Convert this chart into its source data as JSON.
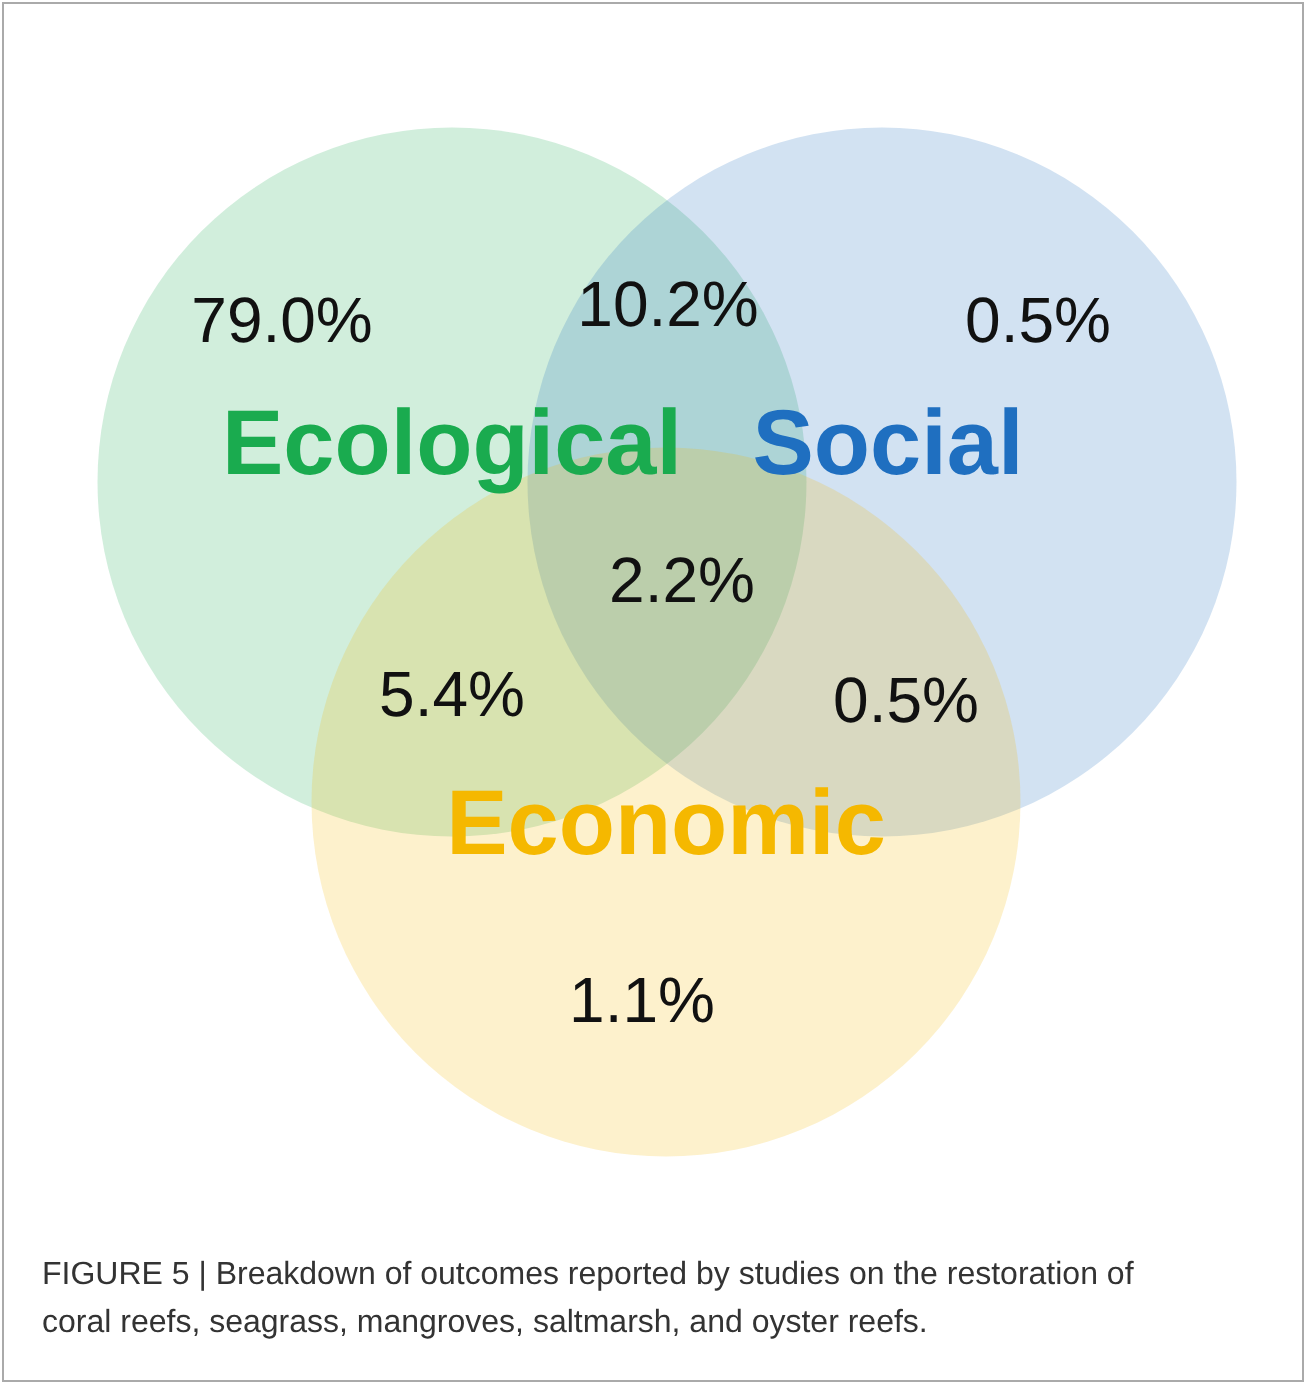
{
  "chart_data": {
    "type": "other",
    "categories": [
      null,
      null,
      null,
      null,
      null,
      null,
      null
    ],
    "values": [
      79.0,
      10.2,
      0.5,
      2.2,
      5.4,
      0.5,
      1.1
    ],
    "value_labels": [
      "79.0%",
      "10.2%",
      "0.5%",
      "2.2%",
      "5.4%",
      "0.5%",
      "1.1%"
    ],
    "annotations": [
      "Ecological",
      "Social",
      "Economic",
      "FIGURE 5 | Breakdown of outcomes reported by studies on the restoration of coral reefs, seagrass, mangroves, saltmarsh, and oyster reefs."
    ]
  }
}
